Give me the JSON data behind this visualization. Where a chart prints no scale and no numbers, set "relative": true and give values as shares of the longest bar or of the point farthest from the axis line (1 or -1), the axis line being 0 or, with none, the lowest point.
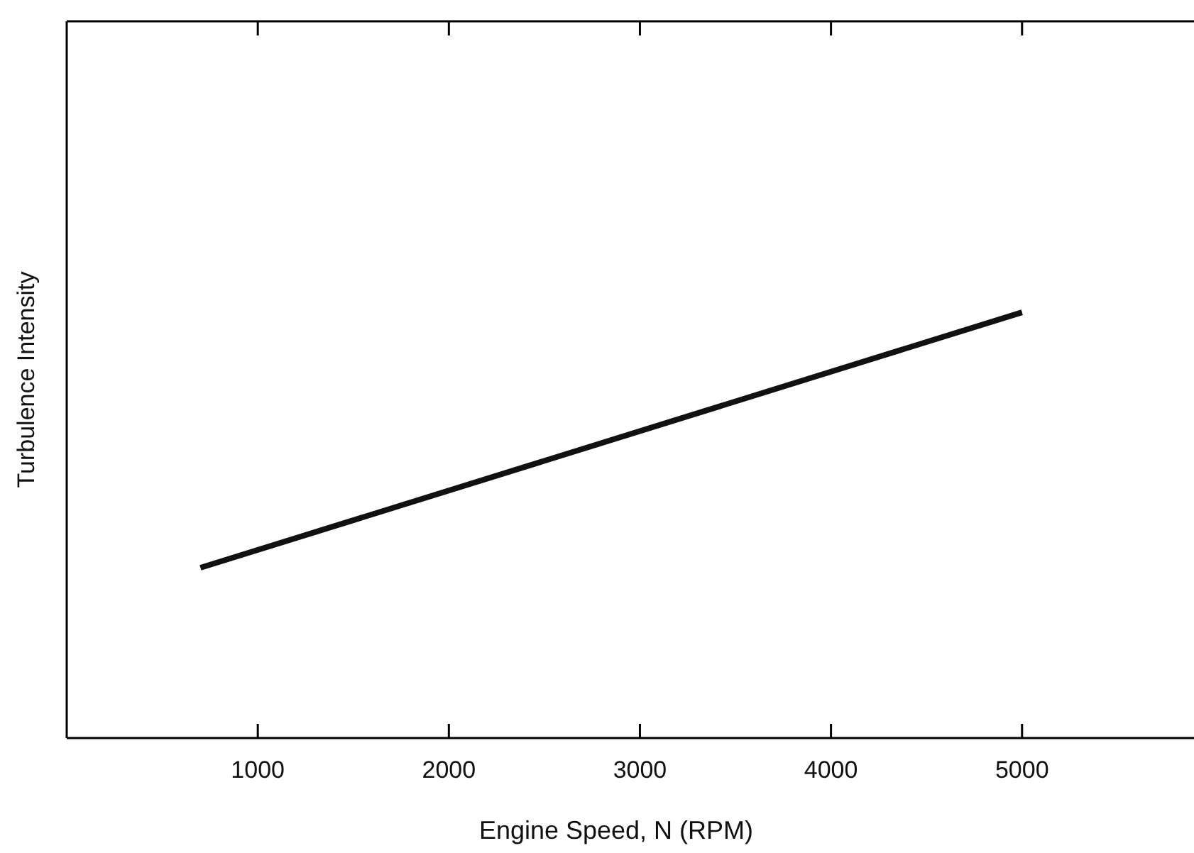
{
  "chart_data": {
    "type": "line",
    "xlabel": "Engine Speed, N (RPM)",
    "ylabel": "Turbulence Intensity",
    "x": [
      700,
      5000
    ],
    "series": [
      {
        "color": "#111111",
        "values": [
          0.4,
          1
        ]
      }
    ],
    "relative": true,
    "xlim": [
      0,
      5900
    ],
    "xticks": [
      1000,
      2000,
      3000,
      4000,
      5000
    ],
    "tick_labels": "x",
    "marker": "none",
    "line_style": "solid",
    "grid": false
  }
}
